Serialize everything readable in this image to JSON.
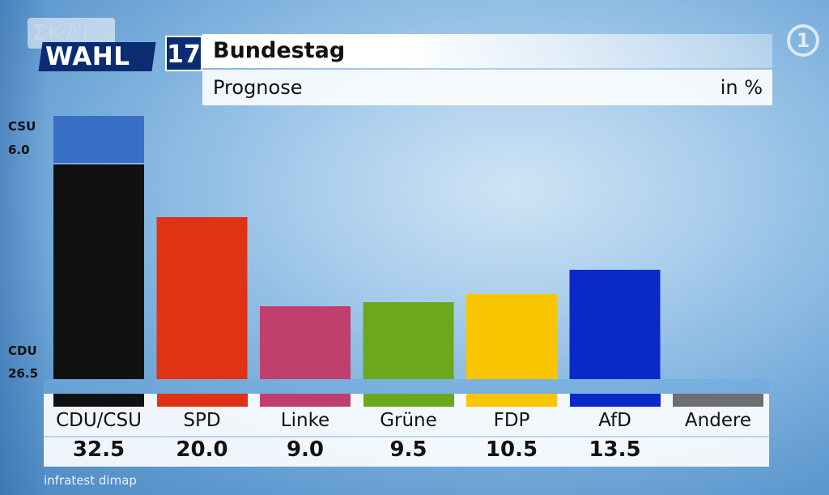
{
  "broadcaster": "ΣΚΑΪ",
  "logo": {
    "wahl": "WAHL",
    "number": "17",
    "channel_badge": "1"
  },
  "header": {
    "title": "Bundestag",
    "subtitle": "Prognose",
    "unit": "in %"
  },
  "side_labels": {
    "csu_name": "CSU",
    "csu_value": "6.0",
    "cdu_name": "CDU",
    "cdu_value": "26.5"
  },
  "source": "infratest dimap",
  "colors": {
    "CDU": "#111111",
    "CSU": "#3a6fc7",
    "SPD": "#e03214",
    "Linke": "#c13f6c",
    "Grüne": "#6ba81c",
    "FDP": "#f7c600",
    "AfD": "#0b29c9",
    "Andere": "#6e6e6e"
  },
  "chart_data": {
    "type": "bar",
    "title": "Bundestag",
    "subtitle": "Prognose",
    "unit": "in %",
    "categories": [
      "CDU/CSU",
      "SPD",
      "Linke",
      "Grüne",
      "FDP",
      "AfD",
      "Andere"
    ],
    "values": [
      32.5,
      20.0,
      9.0,
      9.5,
      10.5,
      13.5,
      null
    ],
    "value_labels": [
      "32.5",
      "20.0",
      "9.0",
      "9.5",
      "10.5",
      "13.5",
      ""
    ],
    "stacked_first": [
      {
        "name": "CDU",
        "value": 26.5
      },
      {
        "name": "CSU",
        "value": 6.0
      }
    ],
    "bar_colors": [
      "#111111",
      "#e03214",
      "#c13f6c",
      "#6ba81c",
      "#f7c600",
      "#0b29c9",
      "#6e6e6e"
    ],
    "ylim": [
      0,
      32.5
    ],
    "grid": false,
    "legend": "none"
  }
}
